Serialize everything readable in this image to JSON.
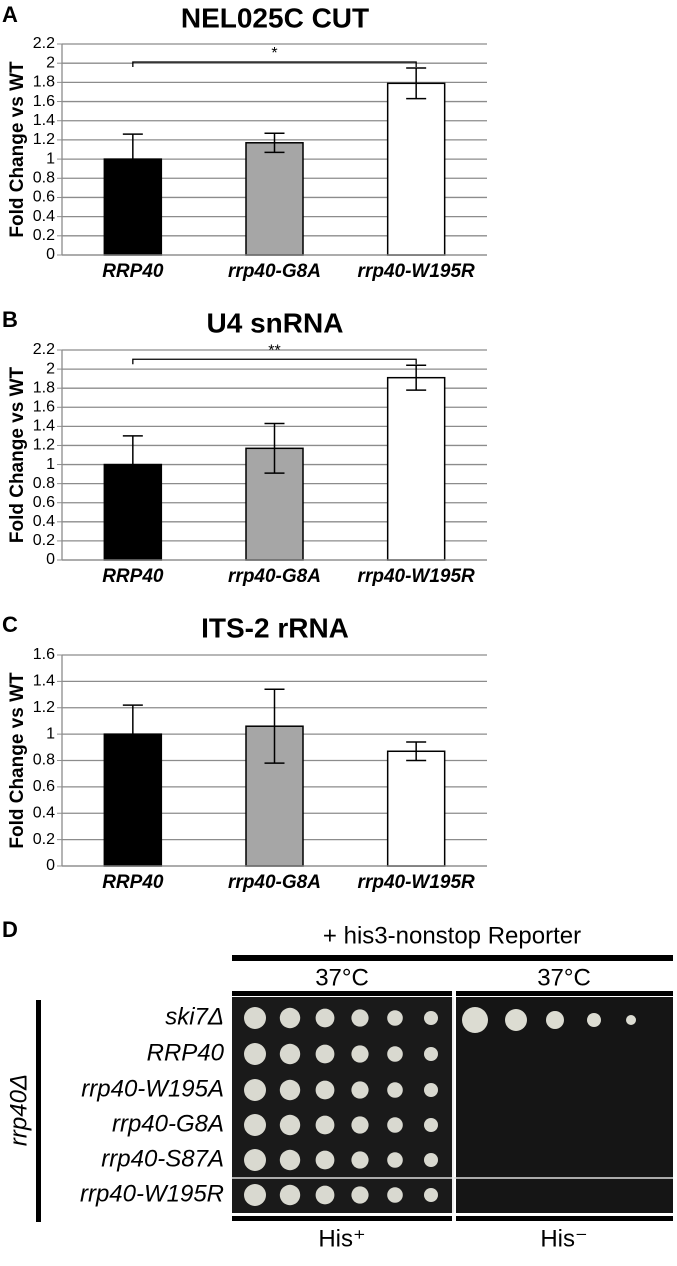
{
  "chart_data": [
    {
      "type": "bar",
      "panel_label": "A",
      "title": "NEL025C CUT",
      "ylabel": "Fold Change vs WT",
      "categories": [
        "RRP40",
        "rrp40-G8A",
        "rrp40-W195R"
      ],
      "values": [
        1.0,
        1.17,
        1.79
      ],
      "errors": [
        0.26,
        0.1,
        0.16
      ],
      "colors": [
        "#000000",
        "#a6a6a6",
        "#ffffff"
      ],
      "significance": "*",
      "ylim": [
        0,
        2.2
      ],
      "yticks": [
        0,
        0.2,
        0.4,
        0.6,
        0.8,
        1,
        1.2,
        1.4,
        1.6,
        1.8,
        2,
        2.2
      ],
      "grid": true
    },
    {
      "type": "bar",
      "panel_label": "B",
      "title": "U4 snRNA",
      "ylabel": "Fold Change vs WT",
      "categories": [
        "RRP40",
        "rrp40-G8A",
        "rrp40-W195R"
      ],
      "values": [
        1.0,
        1.17,
        1.91
      ],
      "errors": [
        0.3,
        0.26,
        0.13
      ],
      "colors": [
        "#000000",
        "#a6a6a6",
        "#ffffff"
      ],
      "significance": "**",
      "ylim": [
        0,
        2.2
      ],
      "yticks": [
        0,
        0.2,
        0.4,
        0.6,
        0.8,
        1,
        1.2,
        1.4,
        1.6,
        1.8,
        2,
        2.2
      ],
      "grid": true
    },
    {
      "type": "bar",
      "panel_label": "C",
      "title": "ITS-2 rRNA",
      "ylabel": "Fold Change vs WT",
      "categories": [
        "RRP40",
        "rrp40-G8A",
        "rrp40-W195R"
      ],
      "values": [
        1.0,
        1.06,
        0.87
      ],
      "errors": [
        0.22,
        0.28,
        0.07
      ],
      "colors": [
        "#000000",
        "#a6a6a6",
        "#ffffff"
      ],
      "ylim": [
        0,
        1.6
      ],
      "yticks": [
        0,
        0.2,
        0.4,
        0.6,
        0.8,
        1,
        1.2,
        1.4,
        1.6
      ],
      "grid": true
    }
  ],
  "panel_d": {
    "panel_label": "D",
    "header": "+ his3-nonstop Reporter",
    "conditions": [
      "37°C",
      "37°C"
    ],
    "side_label": "rrp40Δ",
    "rows": [
      "ski7Δ",
      "RRP40",
      "rrp40-W195A",
      "rrp40-G8A",
      "rrp40-S87A",
      "rrp40-W195R"
    ],
    "media": [
      "His⁺",
      "His⁻"
    ]
  }
}
